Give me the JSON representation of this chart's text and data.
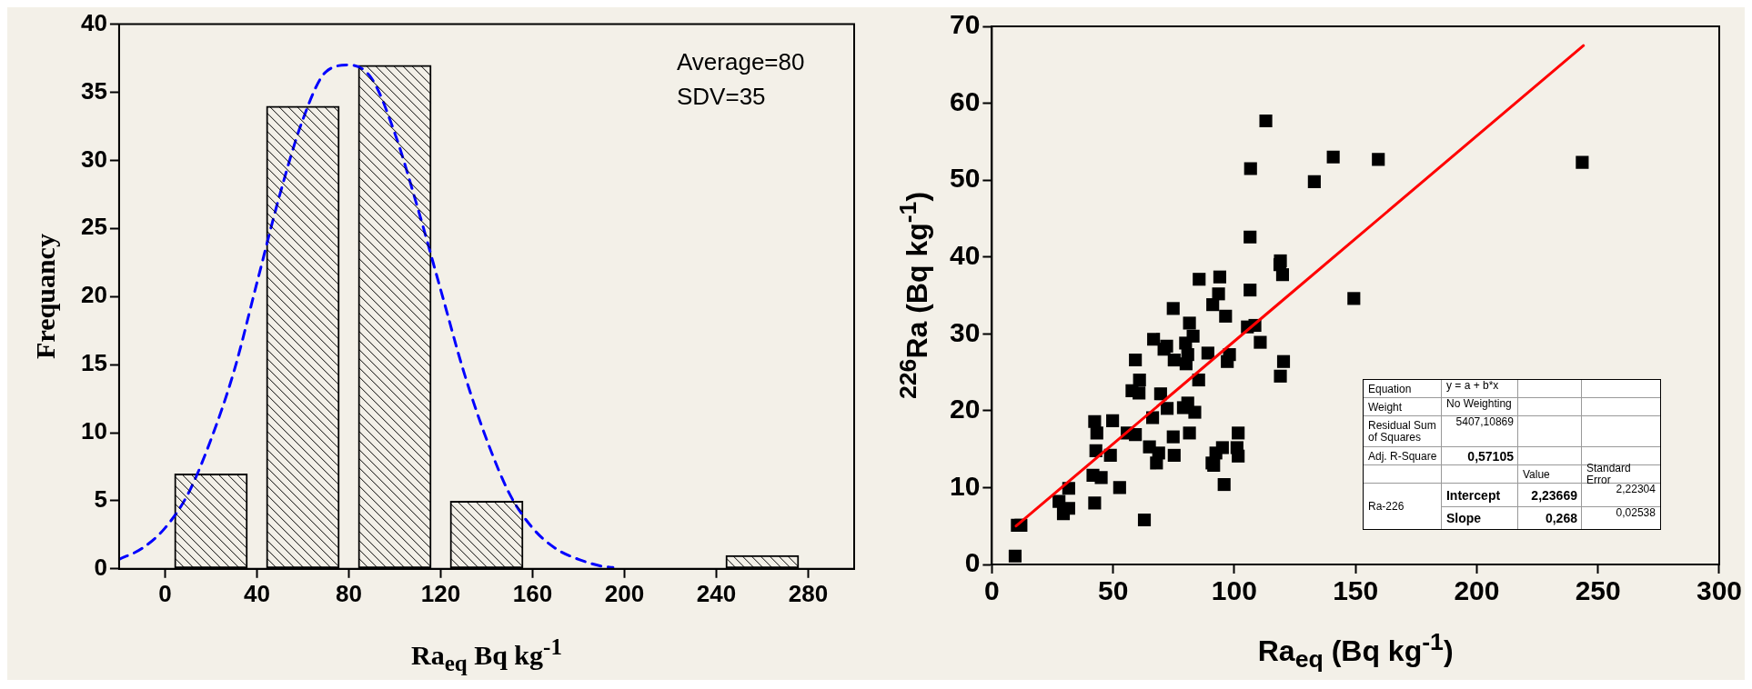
{
  "chart_data": [
    {
      "type": "histogram",
      "xlabel": "Ra$_{eq}$ Bq kg$^{-1}$",
      "ylabel": "Frequancy",
      "xlim": [
        -20,
        300
      ],
      "xticks": [
        0,
        40,
        80,
        120,
        160,
        200,
        240,
        280
      ],
      "ylim": [
        0,
        40
      ],
      "yticks": [
        0,
        5,
        10,
        15,
        20,
        25,
        30,
        35,
        40
      ],
      "grid": false,
      "legend": false,
      "annotations": [
        "Average=80",
        "SDV=35"
      ],
      "series": [
        {
          "type": "bar",
          "x": [
            20,
            60,
            100,
            140,
            180,
            220,
            260
          ],
          "values": [
            7,
            34,
            37,
            5,
            0,
            0,
            1
          ],
          "color": "#000000"
        },
        {
          "type": "line",
          "line_style": "dashed",
          "color": "#0000ff",
          "x": [
            -20,
            -10,
            0,
            10,
            20,
            30,
            40,
            50,
            60,
            70,
            80,
            90,
            100,
            110,
            120,
            130,
            140,
            150,
            160,
            170,
            180,
            190,
            195
          ],
          "values": [
            0.7,
            1.5,
            3,
            5.5,
            9.5,
            14.5,
            21,
            27.5,
            33,
            36.5,
            37,
            36,
            32,
            26.5,
            20.5,
            14.5,
            9.5,
            5.5,
            3,
            1.5,
            0.7,
            0.2,
            0.1
          ]
        }
      ]
    },
    {
      "type": "scatter",
      "xlabel": "Ra$_{eq}$ (Bq kg$^{-1}$)",
      "ylabel": "$^{226}$Ra (Bq kg$^{-1}$)",
      "xlim": [
        0,
        300
      ],
      "xticks": [
        0,
        50,
        100,
        150,
        200,
        250,
        300
      ],
      "ylim": [
        0,
        70
      ],
      "yticks": [
        0,
        10,
        20,
        30,
        40,
        50,
        60,
        70
      ],
      "grid": false,
      "legend": false,
      "annotations": [
        "Equation",
        "y = a + b*x",
        "Weight",
        "No Weighting",
        "Residual Sum of Squares",
        "5407,10869",
        "Adj. R-Square",
        "0,57105",
        "Value",
        "Standard Error",
        "Ra-226",
        "Intercept",
        "2,23669",
        "2,22304",
        "Slope",
        "0,268",
        "0,02538"
      ],
      "series": [
        {
          "type": "scatter",
          "marker": "square",
          "color": "#000000",
          "x": [
            9.6,
            10.5,
            12,
            27.7,
            29.5,
            31.7,
            31.7,
            42.4,
            43.3,
            42.9,
            41.7,
            45.1,
            42.4,
            48.9,
            49.8,
            52.7,
            55.8,
            59.2,
            57.8,
            60.7,
            60.9,
            59.2,
            62.9,
            65,
            66.3,
            66.7,
            68.8,
            67.9,
            69.6,
            71,
            72.1,
            72.3,
            74.8,
            75.2,
            75.2,
            74.8,
            79,
            80.8,
            79.9,
            80.1,
            80.8,
            81.5,
            81.5,
            83,
            83.7,
            85.3,
            85.5,
            89.1,
            91.1,
            90.8,
            91.5,
            92.4,
            93.5,
            94,
            95.1,
            95.8,
            96.4,
            97.1,
            98,
            101.6,
            101.1,
            101.6,
            105.4,
            106.5,
            106.5,
            106.7,
            108.5,
            110.7,
            113,
            119,
            118.8,
            119,
            119.9,
            120.3,
            133,
            140.8,
            149.3,
            159.4,
            243.5
          ],
          "values": [
            1.1,
            5.1,
            5.1,
            8.2,
            6.6,
            7.3,
            9.9,
            18.6,
            17.1,
            14.8,
            11.6,
            11.3,
            8,
            14.2,
            18.7,
            10,
            17.1,
            16.9,
            22.6,
            22.3,
            24,
            26.6,
            5.8,
            15.3,
            19.1,
            29.3,
            14.5,
            13.2,
            22.2,
            28,
            28.4,
            20.3,
            16.6,
            14.2,
            26.6,
            33.3,
            20.4,
            21,
            28.8,
            26.1,
            27.3,
            17.1,
            31.4,
            29.7,
            19.8,
            24,
            37.1,
            27.5,
            33.8,
            13.2,
            12.9,
            14.5,
            35.2,
            37.4,
            15.2,
            10.4,
            32.3,
            26.4,
            27.3,
            17.1,
            15.2,
            14.1,
            30.9,
            35.7,
            42.6,
            51.5,
            31.1,
            28.9,
            57.7,
            24.5,
            39,
            39.5,
            37.7,
            26.4,
            49.8,
            53,
            34.6,
            52.7,
            52.3
          ]
        },
        {
          "type": "line",
          "color": "#ff0000",
          "x": [
            10,
            244
          ],
          "values": [
            5,
            67.5
          ]
        }
      ]
    }
  ]
}
